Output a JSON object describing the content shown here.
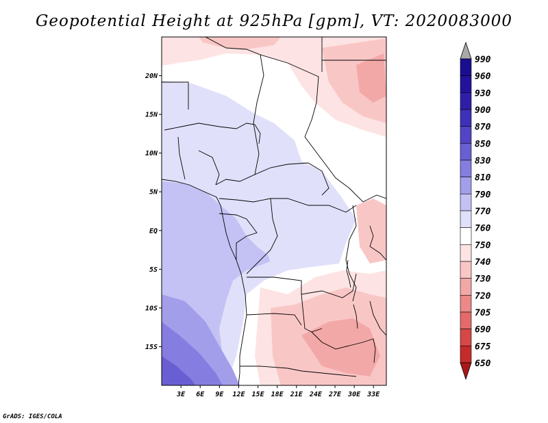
{
  "title": "Geopotential Height at 925hPa [gpm], VT: 2020083000",
  "credit": "GrADS: IGES/COLA",
  "map": {
    "projection": "latlon",
    "lon_range": [
      0,
      35
    ],
    "lat_range": [
      -20,
      25
    ],
    "lat_ticks": [
      {
        "value": 20,
        "label": "20N"
      },
      {
        "value": 15,
        "label": "15N"
      },
      {
        "value": 10,
        "label": "10N"
      },
      {
        "value": 5,
        "label": "5N"
      },
      {
        "value": 0,
        "label": "EQ"
      },
      {
        "value": -5,
        "label": "5S"
      },
      {
        "value": -10,
        "label": "10S"
      },
      {
        "value": -15,
        "label": "15S"
      }
    ],
    "lon_ticks": [
      {
        "value": 3,
        "label": "3E"
      },
      {
        "value": 6,
        "label": "6E"
      },
      {
        "value": 9,
        "label": "9E"
      },
      {
        "value": 12,
        "label": "12E"
      },
      {
        "value": 15,
        "label": "15E"
      },
      {
        "value": 18,
        "label": "18E"
      },
      {
        "value": 21,
        "label": "21E"
      },
      {
        "value": 24,
        "label": "24E"
      },
      {
        "value": 27,
        "label": "27E"
      },
      {
        "value": 30,
        "label": "30E"
      },
      {
        "value": 33,
        "label": "33E"
      }
    ]
  },
  "colorbar": {
    "levels": [
      {
        "label": "990",
        "color": "#1a0d8f"
      },
      {
        "label": "960",
        "color": "#24129c"
      },
      {
        "label": "930",
        "color": "#2f1fa8"
      },
      {
        "label": "900",
        "color": "#3e30b8"
      },
      {
        "label": "870",
        "color": "#5244c4"
      },
      {
        "label": "850",
        "color": "#6a5fd2"
      },
      {
        "label": "830",
        "color": "#867de0"
      },
      {
        "label": "810",
        "color": "#a39eea"
      },
      {
        "label": "790",
        "color": "#c4c2f4"
      },
      {
        "label": "770",
        "color": "#e1e0fa"
      },
      {
        "label": "760",
        "color": "#ffffff"
      },
      {
        "label": "750",
        "color": "#fde3e3"
      },
      {
        "label": "740",
        "color": "#f9c6c6"
      },
      {
        "label": "730",
        "color": "#f3a8a8"
      },
      {
        "label": "720",
        "color": "#ec8888"
      },
      {
        "label": "705",
        "color": "#e46a6a"
      },
      {
        "label": "690",
        "color": "#d64747"
      },
      {
        "label": "675",
        "color": "#c52b2b"
      },
      {
        "label": "650",
        "color": "#a81818"
      }
    ],
    "top_arrow_color": "#a9a9a9",
    "bottom_arrow_color": "#a81818"
  }
}
